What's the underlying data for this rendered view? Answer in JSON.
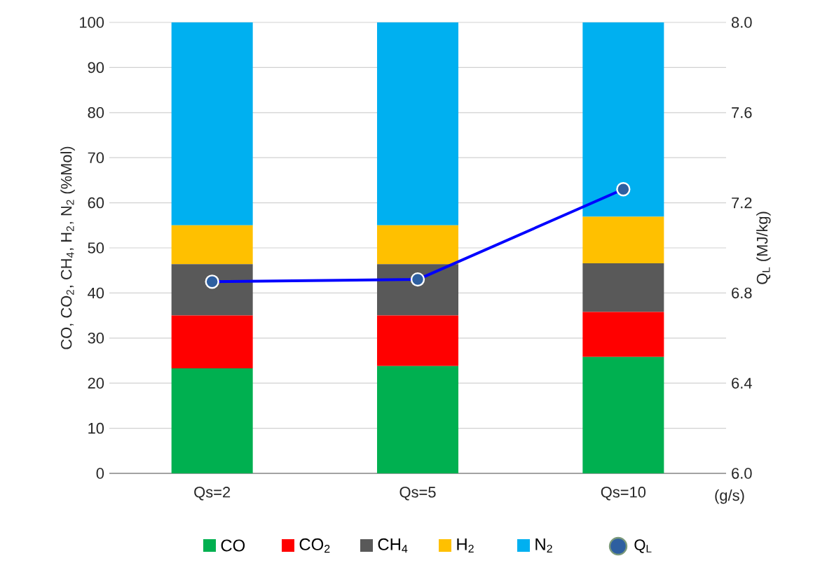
{
  "chart_data": {
    "type": "bar",
    "stacked": true,
    "categories": [
      "Qs=2",
      "Qs=5",
      "Qs=10"
    ],
    "xlabel": "(g/s)",
    "ylabel": "CO, CO$_{2}$, CH$_{4}$, H$_{2}$, N$_{2}$ (%Mol)",
    "y2label": "Q$_{L}$ (MJ/kg)",
    "ylim": [
      0,
      100
    ],
    "yticks": [
      0,
      10,
      20,
      30,
      40,
      50,
      60,
      70,
      80,
      90,
      100
    ],
    "y2lim": [
      6.0,
      8.0
    ],
    "y2ticks": [
      {
        "value": 6.0,
        "label": "6.0"
      },
      6.4,
      6.8,
      7.2,
      7.6,
      {
        "value": 8.0,
        "label": "8.0"
      }
    ],
    "grid": "y",
    "legend": "bottom",
    "marker": "circle",
    "series": [
      {
        "name": "CO",
        "color": "#00b050",
        "values": [
          23.3,
          23.8,
          25.8
        ]
      },
      {
        "name": "CO$_{2}$",
        "color": "#ff0000",
        "values": [
          11.7,
          11.2,
          10.0
        ]
      },
      {
        "name": "CH$_{4}$",
        "color": "#595959",
        "values": [
          11.4,
          11.4,
          10.8
        ]
      },
      {
        "name": "H$_{2}$",
        "color": "#ffc000",
        "values": [
          8.6,
          8.6,
          10.3
        ]
      },
      {
        "name": "N$_{2}$",
        "color": "#00b0f0",
        "values": [
          45.0,
          45.0,
          43.1
        ]
      },
      {
        "name": "Q$_{L}$",
        "type": "line",
        "axis": "y2",
        "color": "#0000ff",
        "values": [
          6.85,
          6.86,
          7.26
        ]
      }
    ]
  }
}
